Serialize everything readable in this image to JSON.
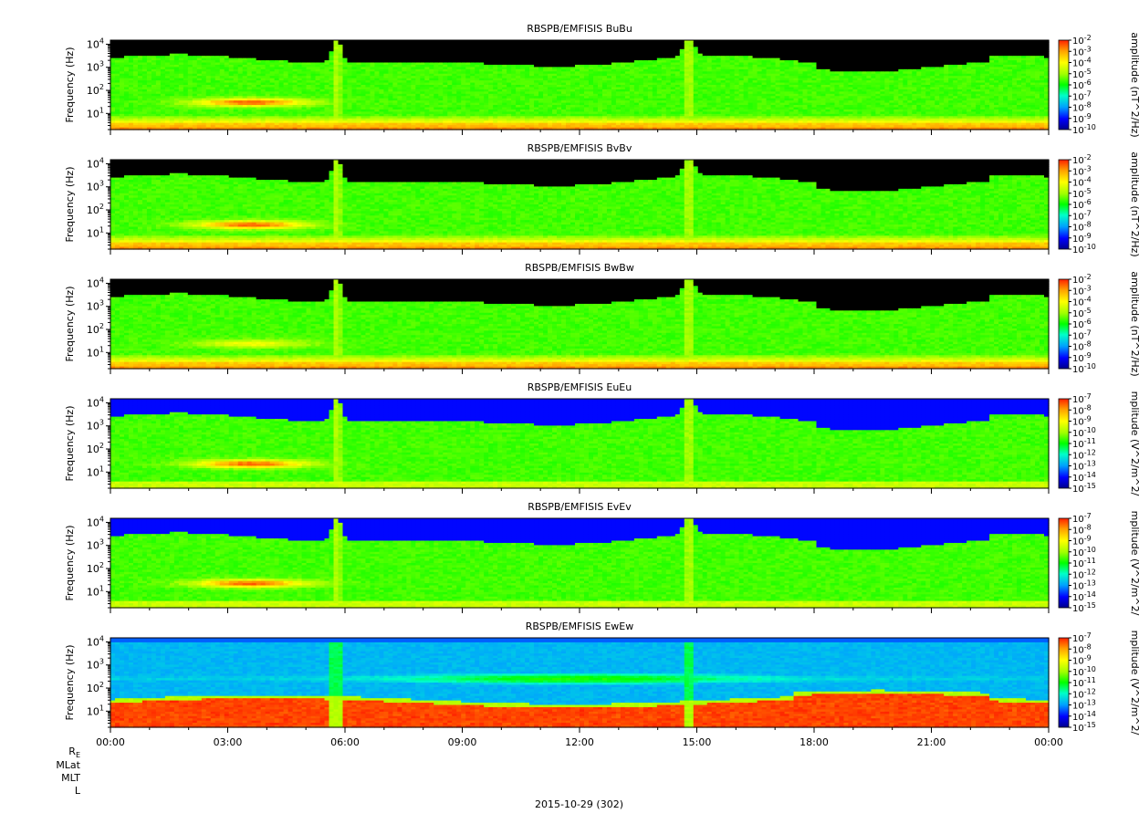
{
  "chart_data": [
    {
      "type": "heatmap",
      "title": "RBSPB/EMFISIS  BuBu",
      "ylabel": "Frequency (Hz)",
      "yscale": "log",
      "ylim": [
        2,
        15000
      ],
      "yticks": [
        "10^1",
        "10^2",
        "10^3",
        "10^4"
      ],
      "colorbar": {
        "label": "amplitude (nT^2/Hz)",
        "min_exp": -10,
        "max_exp": -2,
        "ticks": [
          -10,
          -9,
          -8,
          -7,
          -6,
          -5,
          -4,
          -3,
          -2
        ]
      },
      "features": {
        "emic_band": [
          20,
          40
        ],
        "spikes": [
          5.8,
          14.8
        ],
        "burst": [
          16.0,
          17.5
        ],
        "kind": "B"
      }
    },
    {
      "type": "heatmap",
      "title": "RBSPB/EMFISIS  BvBv",
      "ylabel": "Frequency (Hz)",
      "yscale": "log",
      "ylim": [
        2,
        15000
      ],
      "yticks": [
        "10^1",
        "10^2",
        "10^3",
        "10^4"
      ],
      "colorbar": {
        "label": "amplitude (nT^2/Hz)",
        "min_exp": -10,
        "max_exp": -2,
        "ticks": [
          -10,
          -9,
          -8,
          -7,
          -6,
          -5,
          -4,
          -3,
          -2
        ]
      },
      "features": {
        "emic_band": [
          15,
          30
        ],
        "spikes": [
          5.8,
          14.8
        ],
        "burst": [
          16.0,
          17.5
        ],
        "kind": "B"
      }
    },
    {
      "type": "heatmap",
      "title": "RBSPB/EMFISIS  BwBw",
      "ylabel": "Frequency (Hz)",
      "yscale": "log",
      "ylim": [
        2,
        15000
      ],
      "yticks": [
        "10^1",
        "10^2",
        "10^3",
        "10^4"
      ],
      "colorbar": {
        "label": "amplitude (nT^2/Hz)",
        "min_exp": -10,
        "max_exp": -2,
        "ticks": [
          -10,
          -9,
          -8,
          -7,
          -6,
          -5,
          -4,
          -3,
          -2
        ]
      },
      "features": {
        "emic_band": [
          18,
          30
        ],
        "spikes": [
          5.8,
          14.8
        ],
        "burst": [
          16.0,
          17.5
        ],
        "kind": "Bw"
      }
    },
    {
      "type": "heatmap",
      "title": "RBSPB/EMFISIS  EuEu",
      "ylabel": "Frequency (Hz)",
      "yscale": "log",
      "ylim": [
        2,
        15000
      ],
      "yticks": [
        "10^1",
        "10^2",
        "10^3",
        "10^4"
      ],
      "colorbar": {
        "label": "mplitude (V^2/m^2/",
        "min_exp": -15,
        "max_exp": -7,
        "ticks": [
          -15,
          -14,
          -13,
          -12,
          -11,
          -10,
          -9,
          -8,
          -7
        ]
      },
      "features": {
        "emic_band": [
          15,
          30
        ],
        "spikes": [
          5.8,
          14.8
        ],
        "burst": [
          16.0,
          17.5
        ],
        "kind": "E"
      }
    },
    {
      "type": "heatmap",
      "title": "RBSPB/EMFISIS  EvEv",
      "ylabel": "Frequency (Hz)",
      "yscale": "log",
      "ylim": [
        2,
        15000
      ],
      "yticks": [
        "10^1",
        "10^2",
        "10^3",
        "10^4"
      ],
      "colorbar": {
        "label": "mplitude (V^2/m^2/",
        "min_exp": -15,
        "max_exp": -7,
        "ticks": [
          -15,
          -14,
          -13,
          -12,
          -11,
          -10,
          -9,
          -8,
          -7
        ]
      },
      "features": {
        "emic_band": [
          15,
          30
        ],
        "spikes": [
          5.8,
          14.8
        ],
        "burst": [
          16.0,
          17.5
        ],
        "kind": "E"
      }
    },
    {
      "type": "heatmap",
      "title": "RBSPB/EMFISIS  EwEw",
      "ylabel": "Frequency (Hz)",
      "yscale": "log",
      "ylim": [
        2,
        15000
      ],
      "yticks": [
        "10^1",
        "10^2",
        "10^3",
        "10^4"
      ],
      "colorbar": {
        "label": "mplitude (V^2/m^2/",
        "min_exp": -15,
        "max_exp": -7,
        "ticks": [
          -15,
          -14,
          -13,
          -12,
          -11,
          -10,
          -9,
          -8,
          -7
        ]
      },
      "features": {
        "emic_band": [
          0,
          0
        ],
        "spikes": [
          5.8,
          14.8
        ],
        "burst": [
          16.0,
          17.5
        ],
        "kind": "Ew"
      }
    }
  ],
  "xaxis": {
    "range_hours": [
      0,
      24
    ],
    "ticks": [
      {
        "hour": 0,
        "label": "00:00"
      },
      {
        "hour": 3,
        "label": "03:00"
      },
      {
        "hour": 6,
        "label": "06:00"
      },
      {
        "hour": 9,
        "label": "09:00"
      },
      {
        "hour": 12,
        "label": "12:00"
      },
      {
        "hour": 15,
        "label": "15:00"
      },
      {
        "hour": 18,
        "label": "18:00"
      },
      {
        "hour": 21,
        "label": "21:00"
      },
      {
        "hour": 24,
        "label": "00:00"
      }
    ]
  },
  "footer": {
    "rows": [
      "R",
      "MLat",
      "MLT",
      "L"
    ],
    "re_sub": "E",
    "date": "2015-10-29 (302)"
  },
  "colors": {
    "background_black": "#000000",
    "colormap": [
      "#00008c",
      "#0000ff",
      "#00a0ff",
      "#00ffc8",
      "#00ff00",
      "#a0ff00",
      "#ffff00",
      "#ffa000",
      "#ff2000"
    ]
  }
}
